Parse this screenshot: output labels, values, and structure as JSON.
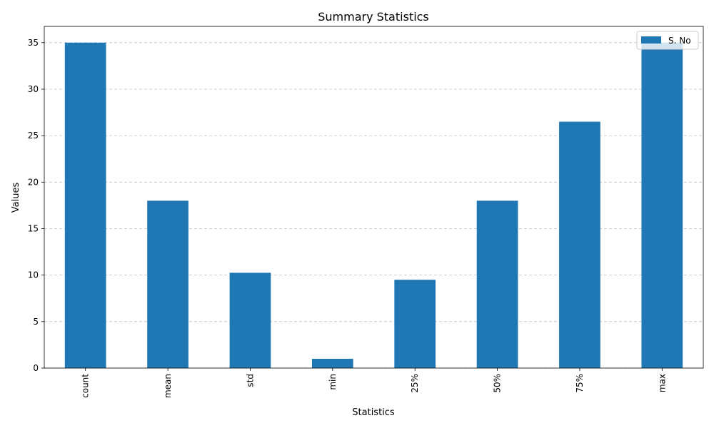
{
  "chart_data": {
    "type": "bar",
    "title": "Summary Statistics",
    "xlabel": "Statistics",
    "ylabel": "Values",
    "categories": [
      "count",
      "mean",
      "std",
      "min",
      "25%",
      "50%",
      "75%",
      "max"
    ],
    "series": [
      {
        "name": "S. No",
        "values": [
          35,
          18,
          10.25,
          1,
          9.5,
          18,
          26.5,
          35
        ],
        "color": "#1f77b4"
      }
    ],
    "ylim": [
      0,
      36.75
    ],
    "yticks": [
      0,
      5,
      10,
      15,
      20,
      25,
      30,
      35
    ],
    "grid": {
      "y": true,
      "style": "dashed",
      "color": "#c0c0c0"
    },
    "legend": {
      "position": "top-right"
    }
  }
}
